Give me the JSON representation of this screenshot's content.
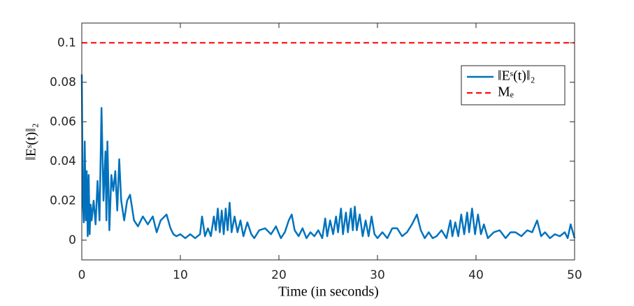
{
  "chart_data": {
    "type": "line",
    "xlabel": "Time (in seconds)",
    "ylabel": "‖Eˢ(t)‖₂",
    "x": [
      0,
      0.1,
      0.2,
      0.3,
      0.4,
      0.5,
      0.6,
      0.7,
      0.8,
      0.9,
      1.0,
      1.2,
      1.4,
      1.6,
      1.8,
      2.0,
      2.2,
      2.4,
      2.5,
      2.6,
      2.8,
      3.0,
      3.2,
      3.4,
      3.6,
      3.8,
      4.0,
      4.3,
      4.6,
      4.9,
      5.3,
      5.7,
      6.2,
      6.7,
      7.2,
      7.6,
      8.0,
      8.6,
      9.0,
      9.3,
      9.6,
      10,
      10.5,
      11,
      11.5,
      12,
      12.2,
      12.5,
      12.8,
      13.1,
      13.4,
      13.6,
      13.8,
      14.0,
      14.2,
      14.4,
      14.6,
      14.8,
      15.0,
      15.2,
      15.5,
      15.8,
      16.1,
      16.4,
      16.8,
      17.2,
      17.5,
      18,
      18.6,
      19.2,
      19.7,
      20.2,
      20.6,
      21.0,
      21.3,
      21.6,
      22,
      22.4,
      22.8,
      23.2,
      23.6,
      24,
      24.4,
      24.7,
      24.9,
      25.2,
      25.5,
      25.8,
      26.0,
      26.3,
      26.5,
      26.8,
      27.0,
      27.3,
      27.5,
      27.7,
      27.9,
      28.2,
      28.5,
      28.8,
      29.1,
      29.4,
      29.7,
      30,
      30.5,
      31,
      31.5,
      32,
      32.5,
      33,
      33.5,
      34,
      34.4,
      34.8,
      35.2,
      35.6,
      36,
      36.5,
      37,
      37.4,
      37.6,
      37.9,
      38.2,
      38.5,
      38.8,
      39.1,
      39.3,
      39.6,
      39.9,
      40.2,
      40.5,
      40.8,
      41.2,
      41.8,
      42.4,
      43,
      43.5,
      44,
      44.6,
      45.2,
      45.7,
      46.2,
      46.6,
      47,
      47.5,
      48,
      48.5,
      49,
      49.3,
      49.6,
      50
    ],
    "series": [
      {
        "name": "‖Eˢ(t)‖₂",
        "color": "#0072bd",
        "values": [
          0.084,
          0.02,
          0.009,
          0.05,
          0.01,
          0.035,
          0.002,
          0.033,
          0.003,
          0.018,
          0.01,
          0.02,
          0.008,
          0.03,
          0.01,
          0.067,
          0.02,
          0.045,
          0.01,
          0.05,
          0.005,
          0.033,
          0.025,
          0.035,
          0.015,
          0.041,
          0.02,
          0.01,
          0.02,
          0.023,
          0.01,
          0.007,
          0.012,
          0.008,
          0.012,
          0.004,
          0.01,
          0.013,
          0.006,
          0.003,
          0.002,
          0.003,
          0.001,
          0.003,
          0.001,
          0.003,
          0.012,
          0.002,
          0.006,
          0.002,
          0.012,
          0.005,
          0.016,
          0.004,
          0.015,
          0.003,
          0.016,
          0.005,
          0.019,
          0.004,
          0.012,
          0.004,
          0.01,
          0.002,
          0.009,
          0.003,
          0.001,
          0.005,
          0.006,
          0.003,
          0.007,
          0.001,
          0.004,
          0.01,
          0.013,
          0.005,
          0.002,
          0.006,
          0.001,
          0.004,
          0.002,
          0.005,
          0.001,
          0.011,
          0.002,
          0.01,
          0.003,
          0.012,
          0.004,
          0.016,
          0.003,
          0.014,
          0.004,
          0.016,
          0.005,
          0.017,
          0.005,
          0.013,
          0.002,
          0.01,
          0.002,
          0.012,
          0.003,
          0.001,
          0.004,
          0.001,
          0.006,
          0.006,
          0.002,
          0.004,
          0.008,
          0.013,
          0.005,
          0.001,
          0.004,
          0.001,
          0.002,
          0.005,
          0.001,
          0.01,
          0.002,
          0.009,
          0.002,
          0.013,
          0.003,
          0.014,
          0.004,
          0.016,
          0.003,
          0.013,
          0.003,
          0.008,
          0.001,
          0.004,
          0.005,
          0.001,
          0.004,
          0.004,
          0.002,
          0.005,
          0.004,
          0.01,
          0.002,
          0.004,
          0.001,
          0.003,
          0.002,
          0.004,
          0.001,
          0.008,
          0.001
        ]
      }
    ],
    "reference_lines": [
      {
        "name": "Mₑ",
        "value": 0.1,
        "color": "#ff0000",
        "style": "dashed"
      }
    ],
    "xlim": [
      0,
      50
    ],
    "xticks": [
      0,
      10,
      20,
      30,
      40,
      50
    ],
    "ylim": [
      -0.01,
      0.11
    ],
    "yticks": [
      0,
      0.02,
      0.04,
      0.06,
      0.08,
      0.1
    ],
    "legend": "upper right"
  }
}
